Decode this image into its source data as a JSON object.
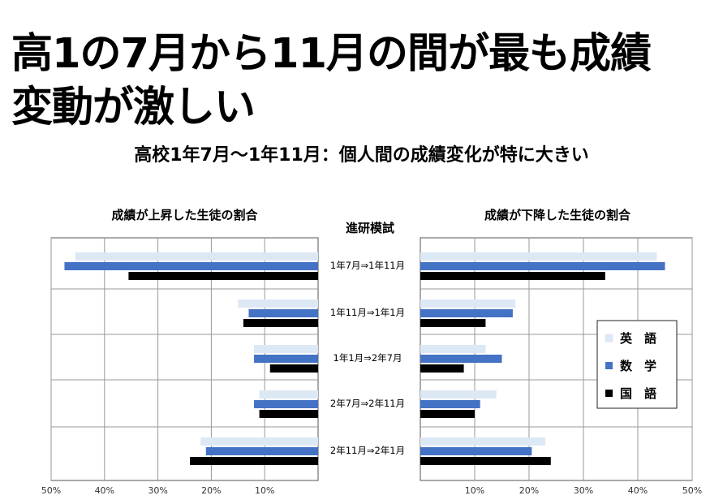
{
  "slide": {
    "title": "高1の7月から11月の間が最も成績\n変動が激しい",
    "subtitle": "高校1年7月〜1年11月：個人間の成績変化が特に大きい",
    "center_heading": "進研模試"
  },
  "chart_data": [
    {
      "type": "bar",
      "orientation": "horizontal",
      "direction": "right-to-left",
      "title": "成績が上昇した生徒の割合",
      "categories": [
        "1年7月⇒1年11月",
        "1年11月⇒1年1月",
        "1年1月⇒2年7月",
        "2年7月⇒2年11月",
        "2年11月⇒2年1月"
      ],
      "series": [
        {
          "name": "英　語",
          "color": "#dde8f5",
          "values": [
            45.5,
            15,
            12,
            11,
            22
          ]
        },
        {
          "name": "数　学",
          "color": "#4472c4",
          "values": [
            47.5,
            13,
            12,
            12,
            21
          ]
        },
        {
          "name": "国　語",
          "color": "#000000",
          "values": [
            35.5,
            14,
            9,
            11,
            24
          ]
        }
      ],
      "xlim": [
        0,
        50
      ],
      "ticks": [
        "50%",
        "40%",
        "30%",
        "20%",
        "10%"
      ],
      "tick_values": [
        50,
        40,
        30,
        20,
        10
      ],
      "grid": true
    },
    {
      "type": "bar",
      "orientation": "horizontal",
      "direction": "left-to-right",
      "title": "成績が下降した生徒の割合",
      "categories": [
        "1年7月⇒1年11月",
        "1年11月⇒1年1月",
        "1年1月⇒2年7月",
        "2年7月⇒2年11月",
        "2年11月⇒2年1月"
      ],
      "series": [
        {
          "name": "英　語",
          "color": "#dde8f5",
          "values": [
            43.5,
            17.5,
            12,
            14,
            23
          ]
        },
        {
          "name": "数　学",
          "color": "#4472c4",
          "values": [
            45,
            17,
            15,
            11,
            20.5
          ]
        },
        {
          "name": "国　語",
          "color": "#000000",
          "values": [
            34,
            12,
            8,
            10,
            24
          ]
        }
      ],
      "xlim": [
        0,
        50
      ],
      "ticks": [
        "10%",
        "20%",
        "30%",
        "40%",
        "50%"
      ],
      "tick_values": [
        10,
        20,
        30,
        40,
        50
      ],
      "grid": true,
      "legend": "right"
    }
  ]
}
